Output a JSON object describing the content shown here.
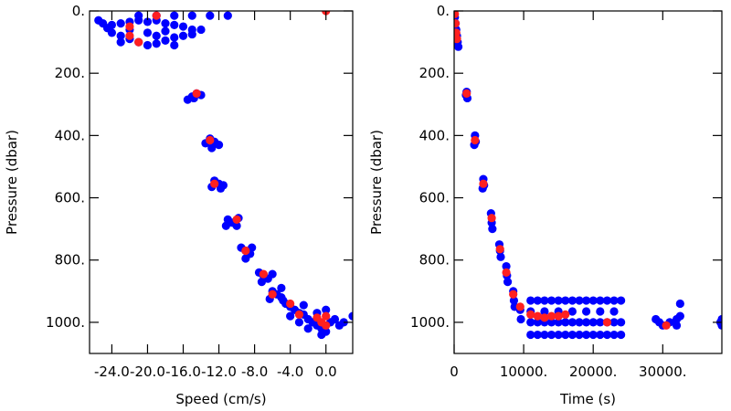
{
  "chart_data": [
    {
      "type": "scatter",
      "x_label": "Speed (cm/s)",
      "y_label": "Pressure (dbar)",
      "xlim": [
        -26.5,
        3
      ],
      "ylim": [
        1100,
        0
      ],
      "xticks": [
        {
          "value": -24,
          "label": "-24.0"
        },
        {
          "value": -20,
          "label": "-20.0"
        },
        {
          "value": -16,
          "label": "-16.0"
        },
        {
          "value": -12,
          "label": "-12.0"
        },
        {
          "value": -8,
          "label": "-8.0"
        },
        {
          "value": -4,
          "label": "-4.0"
        },
        {
          "value": 0,
          "label": "0.0"
        }
      ],
      "yticks": [
        {
          "value": 0,
          "label": "0."
        },
        {
          "value": 200,
          "label": "200."
        },
        {
          "value": 400,
          "label": "400."
        },
        {
          "value": 600,
          "label": "600."
        },
        {
          "value": 800,
          "label": "800."
        },
        {
          "value": 1000,
          "label": "1000."
        }
      ],
      "series": [
        {
          "color": "#0000ff",
          "x": [
            -25,
            -24,
            -23,
            -22,
            -21,
            -20,
            -19,
            -18,
            -17,
            -16,
            -15,
            -14,
            -24,
            -23,
            -22,
            -21,
            -20,
            -19,
            -18,
            -17,
            -16,
            -15,
            -22,
            -20,
            -18,
            -23,
            -19,
            -17,
            -21,
            -19,
            -17,
            -15,
            -13,
            -11,
            -25.5,
            -24.5,
            -15,
            -14.5,
            -14,
            -15.5,
            -14.8,
            -13,
            -12.5,
            -12,
            -13.5,
            -12.8,
            -12.5,
            -12,
            -11.5,
            -12.8,
            -11.8,
            -11,
            -10.5,
            -10,
            -11.2,
            -9.8,
            -9.5,
            -9,
            -8.5,
            -9,
            -8.3,
            -7.5,
            -7,
            -6.5,
            -7.2,
            -6,
            -6,
            -5.5,
            -5,
            -6.3,
            -4.8,
            -5,
            -4.5,
            -4,
            -3.5,
            -3,
            -2.5,
            -2,
            -1.5,
            -1,
            -0.5,
            0,
            0.5,
            1,
            1.5,
            -4,
            -3,
            -2,
            0,
            -1,
            2,
            3,
            -0.5,
            -2.5
          ],
          "values": [
            40,
            45,
            40,
            35,
            30,
            35,
            30,
            40,
            45,
            50,
            60,
            60,
            70,
            80,
            90,
            100,
            110,
            105,
            95,
            85,
            80,
            75,
            60,
            70,
            65,
            100,
            80,
            110,
            15,
            15,
            15,
            15,
            15,
            15,
            30,
            55,
            275,
            265,
            270,
            285,
            280,
            410,
            420,
            430,
            425,
            440,
            545,
            555,
            560,
            565,
            570,
            670,
            680,
            690,
            690,
            665,
            760,
            770,
            780,
            795,
            760,
            840,
            850,
            860,
            870,
            845,
            900,
            910,
            920,
            925,
            930,
            890,
            940,
            950,
            960,
            970,
            975,
            990,
            1000,
            1010,
            1020,
            1030,
            1000,
            990,
            1010,
            980,
            1000,
            1020,
            960,
            970,
            1000,
            980,
            1040,
            945
          ]
        },
        {
          "color": "#ff2020",
          "x": [
            -22,
            -22,
            -21,
            -19,
            -14.5,
            -13,
            -12.5,
            -10,
            -9,
            -7,
            -6,
            -4,
            -3,
            -1,
            0,
            -0.5,
            0,
            0
          ],
          "values": [
            50,
            80,
            100,
            15,
            265,
            415,
            555,
            670,
            770,
            845,
            910,
            940,
            975,
            985,
            980,
            1000,
            1010,
            0
          ]
        }
      ]
    },
    {
      "type": "scatter",
      "x_label": "Time (s)",
      "y_label": "Pressure (dbar)",
      "xlim": [
        0,
        38500
      ],
      "ylim": [
        1100,
        0
      ],
      "xticks": [
        0,
        {
          "value": 10000,
          "label": "10000."
        },
        {
          "value": 20000,
          "label": "20000."
        },
        {
          "value": 30000,
          "label": "30000."
        }
      ],
      "yticks": [
        {
          "value": 0,
          "label": "0."
        },
        {
          "value": 200,
          "label": "200."
        },
        {
          "value": 400,
          "label": "400."
        },
        {
          "value": 600,
          "label": "600."
        },
        {
          "value": 800,
          "label": "800."
        },
        {
          "value": 1000,
          "label": "1000."
        }
      ],
      "series": [
        {
          "color": "#0000ff",
          "x": [
            0,
            100,
            200,
            300,
            400,
            500,
            600,
            1800,
            1900,
            1700,
            3000,
            3100,
            2900,
            4200,
            4300,
            4100,
            5300,
            5400,
            5500,
            6500,
            6600,
            6700,
            7500,
            7600,
            7700,
            8500,
            8600,
            8700,
            9500,
            9600,
            11000,
            12000,
            13000,
            14000,
            15000,
            16000,
            17000,
            18000,
            19000,
            20000,
            21000,
            22000,
            23000,
            24000,
            11000,
            12000,
            13000,
            14000,
            15000,
            16000,
            17000,
            18000,
            19000,
            20000,
            21000,
            22000,
            23000,
            24000,
            11000,
            12000,
            13000,
            14000,
            15000,
            16000,
            17000,
            18000,
            19000,
            20000,
            21000,
            22000,
            23000,
            24000,
            11000,
            13000,
            15000,
            17000,
            19000,
            21000,
            23000,
            29000,
            29500,
            30000,
            31000,
            32000,
            32500,
            32500,
            32000,
            38500,
            38500,
            38300
          ],
          "values": [
            0,
            20,
            40,
            60,
            80,
            100,
            115,
            260,
            280,
            270,
            400,
            420,
            430,
            540,
            560,
            570,
            650,
            680,
            700,
            750,
            770,
            790,
            820,
            850,
            870,
            900,
            930,
            950,
            960,
            990,
            930,
            930,
            930,
            930,
            930,
            930,
            930,
            930,
            930,
            930,
            930,
            930,
            930,
            930,
            1000,
            1000,
            1000,
            1000,
            1000,
            1000,
            1000,
            1000,
            1000,
            1000,
            1000,
            1000,
            1000,
            1000,
            1040,
            1040,
            1040,
            1040,
            1040,
            1040,
            1040,
            1040,
            1040,
            1040,
            1040,
            1040,
            1040,
            1040,
            965,
            965,
            965,
            965,
            965,
            965,
            965,
            990,
            1000,
            1010,
            1000,
            990,
            980,
            940,
            1010,
            990,
            1010,
            1000
          ]
        },
        {
          "color": "#ff2020",
          "x": [
            100,
            200,
            300,
            400,
            1800,
            3000,
            4200,
            5400,
            6600,
            7500,
            8500,
            9500,
            11000,
            12000,
            13000,
            14000,
            15000,
            16000,
            22000,
            30500
          ],
          "values": [
            10,
            40,
            70,
            90,
            265,
            415,
            555,
            665,
            765,
            840,
            910,
            950,
            975,
            980,
            985,
            980,
            980,
            975,
            1000,
            1010
          ]
        }
      ]
    }
  ]
}
